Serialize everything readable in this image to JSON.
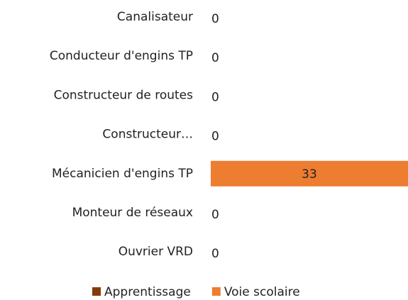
{
  "chart_data": {
    "type": "hbar_stacked",
    "categories": [
      "Canalisateur",
      "Conducteur d'engins TP",
      "Constructeur de routes",
      "Constructeur…",
      "Mécanicien d'engins TP",
      "Monteur de réseaux",
      "Ouvrier VRD"
    ],
    "series": [
      {
        "name": "Apprentissage",
        "color": "#843c0c",
        "values": [
          null,
          null,
          null,
          null,
          null,
          null,
          null
        ]
      },
      {
        "name": "Voie scolaire",
        "color": "#ed7d31",
        "values": [
          0,
          0,
          0,
          0,
          33,
          0,
          0
        ]
      }
    ],
    "xlim": [
      0,
      33
    ],
    "legend": "bottom"
  }
}
